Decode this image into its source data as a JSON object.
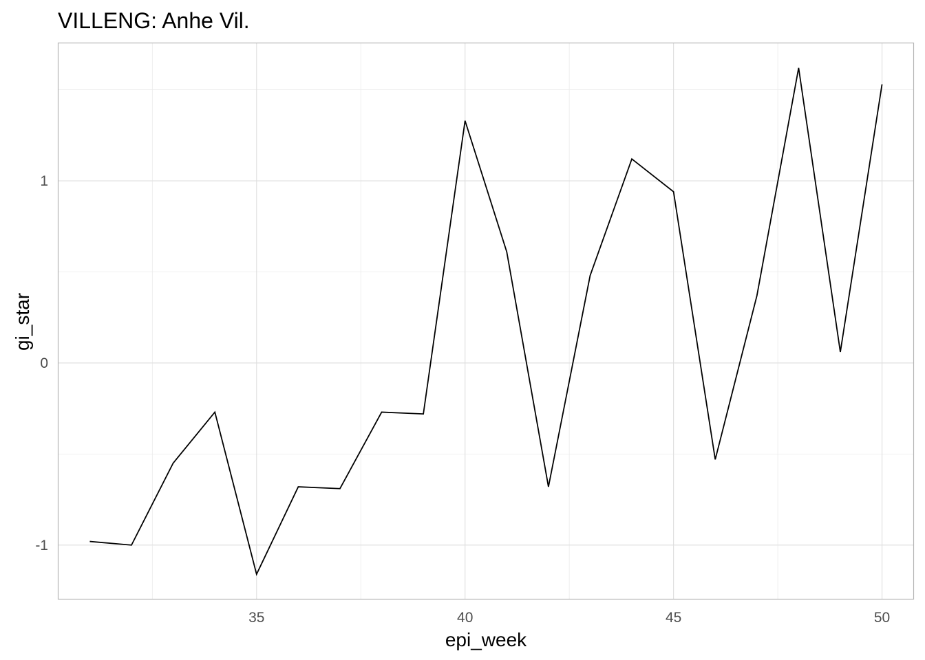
{
  "chart_data": {
    "type": "line",
    "title": "VILLENG: Anhe Vil.",
    "xlabel": "epi_week",
    "ylabel": "gi_star",
    "x": [
      31,
      32,
      33,
      34,
      35,
      36,
      37,
      38,
      39,
      40,
      41,
      42,
      43,
      44,
      45,
      46,
      47,
      48,
      49,
      50
    ],
    "series": [
      {
        "values": [
          -0.98,
          -1.0,
          -0.55,
          -0.27,
          -1.16,
          -0.68,
          -0.69,
          -0.27,
          -0.28,
          1.33,
          0.61,
          -0.68,
          0.48,
          1.12,
          0.94,
          -0.53,
          0.37,
          1.62,
          0.06,
          1.53
        ]
      }
    ],
    "xlim": [
      30.25,
      50.75
    ],
    "ylim": [
      -1.295,
      1.755
    ],
    "x_ticks": [
      35,
      40,
      45,
      50
    ],
    "y_ticks": [
      -1,
      0,
      1
    ],
    "x_tick_labels": [
      "35",
      "40",
      "45",
      "50"
    ],
    "y_tick_labels": [
      "-1",
      "0",
      "1"
    ],
    "grid": true,
    "line_color": "#000000"
  }
}
